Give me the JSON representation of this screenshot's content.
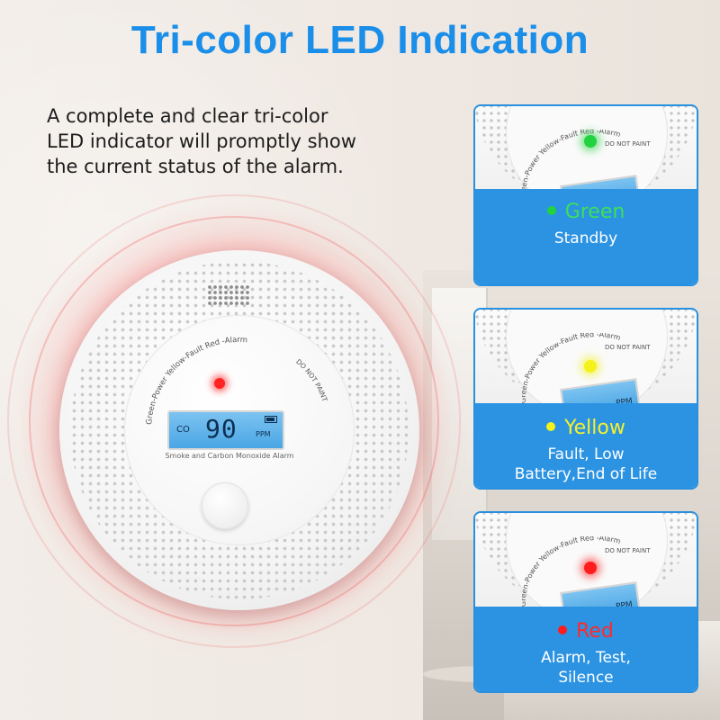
{
  "title": "Tri-color LED Indication",
  "description": {
    "lines": [
      "A complete and clear tri-color",
      "LED indicator will promptly show",
      "the current status of the alarm."
    ]
  },
  "detector": {
    "ring_label": "Green-Power Yellow-Fault Red -Alarm",
    "paint_warning": "DO NOT PAINT",
    "lcd_unit_left": "CO",
    "lcd_value": "90",
    "lcd_unit_right": "PPM",
    "model_label": "Smoke and Carbon Monoxide Alarm",
    "led_color": "#ff2424"
  },
  "cards": [
    {
      "color_name": "Green",
      "color": "#23d23f",
      "lines": [
        "Standby"
      ],
      "photo_ring_label": "Green-Power Yellow-Fault Red -Alarm",
      "photo_warning": "DO NOT PAINT",
      "photo_unit": ""
    },
    {
      "color_name": "Yellow",
      "color": "#f3f21a",
      "lines": [
        "Fault, Low",
        "Battery,End of Life"
      ],
      "photo_ring_label": "Green-Power Yellow-Fault Red -Alarm",
      "photo_warning": "DO NOT PAINT",
      "photo_unit": "PPM"
    },
    {
      "color_name": "Red",
      "color": "#ff1c1c",
      "lines": [
        "Alarm, Test,",
        "Silence"
      ],
      "photo_ring_label": "Green-Power Yellow-Fault Red -Alarm",
      "photo_warning": "DO NOT PAINT",
      "photo_unit": "PPM"
    }
  ],
  "accent_color": "#1a8ee8",
  "panel_color": "#2c93e3"
}
